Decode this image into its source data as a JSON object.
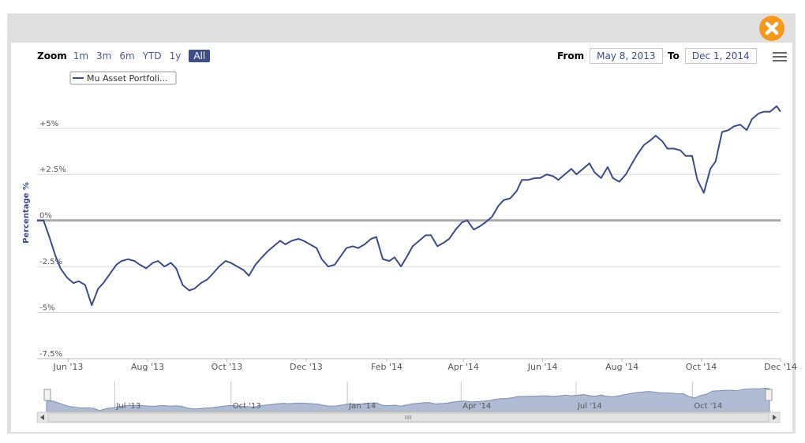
{
  "zoom": {
    "title": "Zoom",
    "buttons": [
      "1m",
      "3m",
      "6m",
      "YTD",
      "1y",
      "All"
    ],
    "active": "All"
  },
  "range": {
    "from_label": "From",
    "from_value": "May 8, 2013",
    "to_label": "To",
    "to_value": "Dec 1, 2014"
  },
  "colors": {
    "series": "#3d4d8c",
    "navigator_fill": "#a7b5ce",
    "zoom_active": "#3d4d8c",
    "close": "#f39a1e"
  },
  "chart_data": {
    "type": "line",
    "ylabel": "Percentage %",
    "ylim": [
      -7.5,
      7.0
    ],
    "yticks": [
      {
        "value": 5,
        "label": "+5%"
      },
      {
        "value": 2.5,
        "label": "+2.5%"
      },
      {
        "value": 0,
        "label": "0%"
      },
      {
        "value": -2.5,
        "label": "-2.5%"
      },
      {
        "value": -5,
        "label": "-5%"
      },
      {
        "value": -7.5,
        "label": "-7.5%"
      }
    ],
    "xlim": [
      "2013-05-08",
      "2014-12-01"
    ],
    "xticks": [
      {
        "date": "2013-06-01",
        "label": "Jun '13"
      },
      {
        "date": "2013-08-01",
        "label": "Aug '13"
      },
      {
        "date": "2013-10-01",
        "label": "Oct '13"
      },
      {
        "date": "2013-12-01",
        "label": "Dec '13"
      },
      {
        "date": "2014-02-01",
        "label": "Feb '14"
      },
      {
        "date": "2014-04-01",
        "label": "Apr '14"
      },
      {
        "date": "2014-06-01",
        "label": "Jun '14"
      },
      {
        "date": "2014-08-01",
        "label": "Aug '14"
      },
      {
        "date": "2014-10-01",
        "label": "Oct '14"
      },
      {
        "date": "2014-12-01",
        "label": "Dec '14"
      }
    ],
    "grid": true,
    "legend": "top-left",
    "navigator_ticks": [
      {
        "date": "2013-07-01",
        "label": "Jul '13"
      },
      {
        "date": "2013-10-01",
        "label": "Oct '13"
      },
      {
        "date": "2014-01-01",
        "label": "Jan '14"
      },
      {
        "date": "2014-04-01",
        "label": "Apr '14"
      },
      {
        "date": "2014-07-01",
        "label": "Jul '14"
      },
      {
        "date": "2014-10-01",
        "label": "Oct '14"
      }
    ],
    "series": [
      {
        "name": "Mu Asset Portfoli...",
        "points": [
          [
            "2013-05-08",
            0.0
          ],
          [
            "2013-05-13",
            0.0
          ],
          [
            "2013-05-17",
            -0.8
          ],
          [
            "2013-05-22",
            -1.9
          ],
          [
            "2013-05-26",
            -2.6
          ],
          [
            "2013-05-31",
            -3.1
          ],
          [
            "2013-06-05",
            -3.4
          ],
          [
            "2013-06-09",
            -3.3
          ],
          [
            "2013-06-14",
            -3.5
          ],
          [
            "2013-06-19",
            -4.6
          ],
          [
            "2013-06-24",
            -3.7
          ],
          [
            "2013-06-28",
            -3.4
          ],
          [
            "2013-07-03",
            -2.9
          ],
          [
            "2013-07-08",
            -2.4
          ],
          [
            "2013-07-12",
            -2.2
          ],
          [
            "2013-07-17",
            -2.1
          ],
          [
            "2013-07-22",
            -2.2
          ],
          [
            "2013-07-26",
            -2.4
          ],
          [
            "2013-07-31",
            -2.6
          ],
          [
            "2013-08-05",
            -2.3
          ],
          [
            "2013-08-09",
            -2.2
          ],
          [
            "2013-08-14",
            -2.5
          ],
          [
            "2013-08-19",
            -2.3
          ],
          [
            "2013-08-23",
            -2.6
          ],
          [
            "2013-08-28",
            -3.5
          ],
          [
            "2013-09-02",
            -3.8
          ],
          [
            "2013-09-06",
            -3.7
          ],
          [
            "2013-09-11",
            -3.4
          ],
          [
            "2013-09-16",
            -3.2
          ],
          [
            "2013-09-20",
            -2.9
          ],
          [
            "2013-09-25",
            -2.5
          ],
          [
            "2013-09-30",
            -2.2
          ],
          [
            "2013-10-04",
            -2.3
          ],
          [
            "2013-10-09",
            -2.5
          ],
          [
            "2013-10-14",
            -2.7
          ],
          [
            "2013-10-18",
            -3.0
          ],
          [
            "2013-10-23",
            -2.4
          ],
          [
            "2013-10-28",
            -2.0
          ],
          [
            "2013-11-01",
            -1.7
          ],
          [
            "2013-11-06",
            -1.4
          ],
          [
            "2013-11-11",
            -1.1
          ],
          [
            "2013-11-15",
            -1.3
          ],
          [
            "2013-11-20",
            -1.1
          ],
          [
            "2013-11-25",
            -1.0
          ],
          [
            "2013-11-29",
            -1.1
          ],
          [
            "2013-12-04",
            -1.3
          ],
          [
            "2013-12-09",
            -1.5
          ],
          [
            "2013-12-13",
            -2.1
          ],
          [
            "2013-12-18",
            -2.5
          ],
          [
            "2013-12-23",
            -2.4
          ],
          [
            "2013-12-27",
            -2.0
          ],
          [
            "2014-01-01",
            -1.5
          ],
          [
            "2014-01-06",
            -1.4
          ],
          [
            "2014-01-10",
            -1.5
          ],
          [
            "2014-01-15",
            -1.3
          ],
          [
            "2014-01-20",
            -1.0
          ],
          [
            "2014-01-24",
            -0.9
          ],
          [
            "2014-01-29",
            -2.1
          ],
          [
            "2014-02-03",
            -2.2
          ],
          [
            "2014-02-07",
            -2.0
          ],
          [
            "2014-02-12",
            -2.5
          ],
          [
            "2014-02-17",
            -1.9
          ],
          [
            "2014-02-21",
            -1.4
          ],
          [
            "2014-02-26",
            -1.1
          ],
          [
            "2014-03-03",
            -0.8
          ],
          [
            "2014-03-07",
            -0.8
          ],
          [
            "2014-03-12",
            -1.4
          ],
          [
            "2014-03-17",
            -1.2
          ],
          [
            "2014-03-21",
            -1.0
          ],
          [
            "2014-03-26",
            -0.5
          ],
          [
            "2014-03-31",
            -0.1
          ],
          [
            "2014-04-04",
            0.0
          ],
          [
            "2014-04-09",
            -0.5
          ],
          [
            "2014-04-14",
            -0.3
          ],
          [
            "2014-04-18",
            -0.1
          ],
          [
            "2014-04-23",
            0.2
          ],
          [
            "2014-04-28",
            0.8
          ],
          [
            "2014-05-02",
            1.1
          ],
          [
            "2014-05-07",
            1.2
          ],
          [
            "2014-05-12",
            1.6
          ],
          [
            "2014-05-16",
            2.2
          ],
          [
            "2014-05-21",
            2.2
          ],
          [
            "2014-05-26",
            2.3
          ],
          [
            "2014-05-30",
            2.3
          ],
          [
            "2014-06-04",
            2.5
          ],
          [
            "2014-06-09",
            2.4
          ],
          [
            "2014-06-13",
            2.2
          ],
          [
            "2014-06-18",
            2.5
          ],
          [
            "2014-06-23",
            2.8
          ],
          [
            "2014-06-27",
            2.5
          ],
          [
            "2014-07-02",
            2.8
          ],
          [
            "2014-07-07",
            3.1
          ],
          [
            "2014-07-11",
            2.6
          ],
          [
            "2014-07-16",
            2.3
          ],
          [
            "2014-07-21",
            2.9
          ],
          [
            "2014-07-25",
            2.3
          ],
          [
            "2014-07-30",
            2.1
          ],
          [
            "2014-08-04",
            2.5
          ],
          [
            "2014-08-08",
            3.0
          ],
          [
            "2014-08-13",
            3.6
          ],
          [
            "2014-08-18",
            4.1
          ],
          [
            "2014-08-22",
            4.3
          ],
          [
            "2014-08-27",
            4.6
          ],
          [
            "2014-09-01",
            4.3
          ],
          [
            "2014-09-05",
            3.9
          ],
          [
            "2014-09-10",
            3.9
          ],
          [
            "2014-09-15",
            3.8
          ],
          [
            "2014-09-19",
            3.5
          ],
          [
            "2014-09-24",
            3.5
          ],
          [
            "2014-09-28",
            2.2
          ],
          [
            "2014-10-03",
            1.5
          ],
          [
            "2014-10-08",
            2.8
          ],
          [
            "2014-10-12",
            3.2
          ],
          [
            "2014-10-17",
            4.8
          ],
          [
            "2014-10-22",
            4.9
          ],
          [
            "2014-10-26",
            5.1
          ],
          [
            "2014-10-31",
            5.2
          ],
          [
            "2014-11-05",
            4.9
          ],
          [
            "2014-11-09",
            5.5
          ],
          [
            "2014-11-14",
            5.8
          ],
          [
            "2014-11-18",
            5.9
          ],
          [
            "2014-11-23",
            5.9
          ],
          [
            "2014-11-28",
            6.2
          ],
          [
            "2014-12-01",
            5.9
          ]
        ]
      }
    ]
  }
}
